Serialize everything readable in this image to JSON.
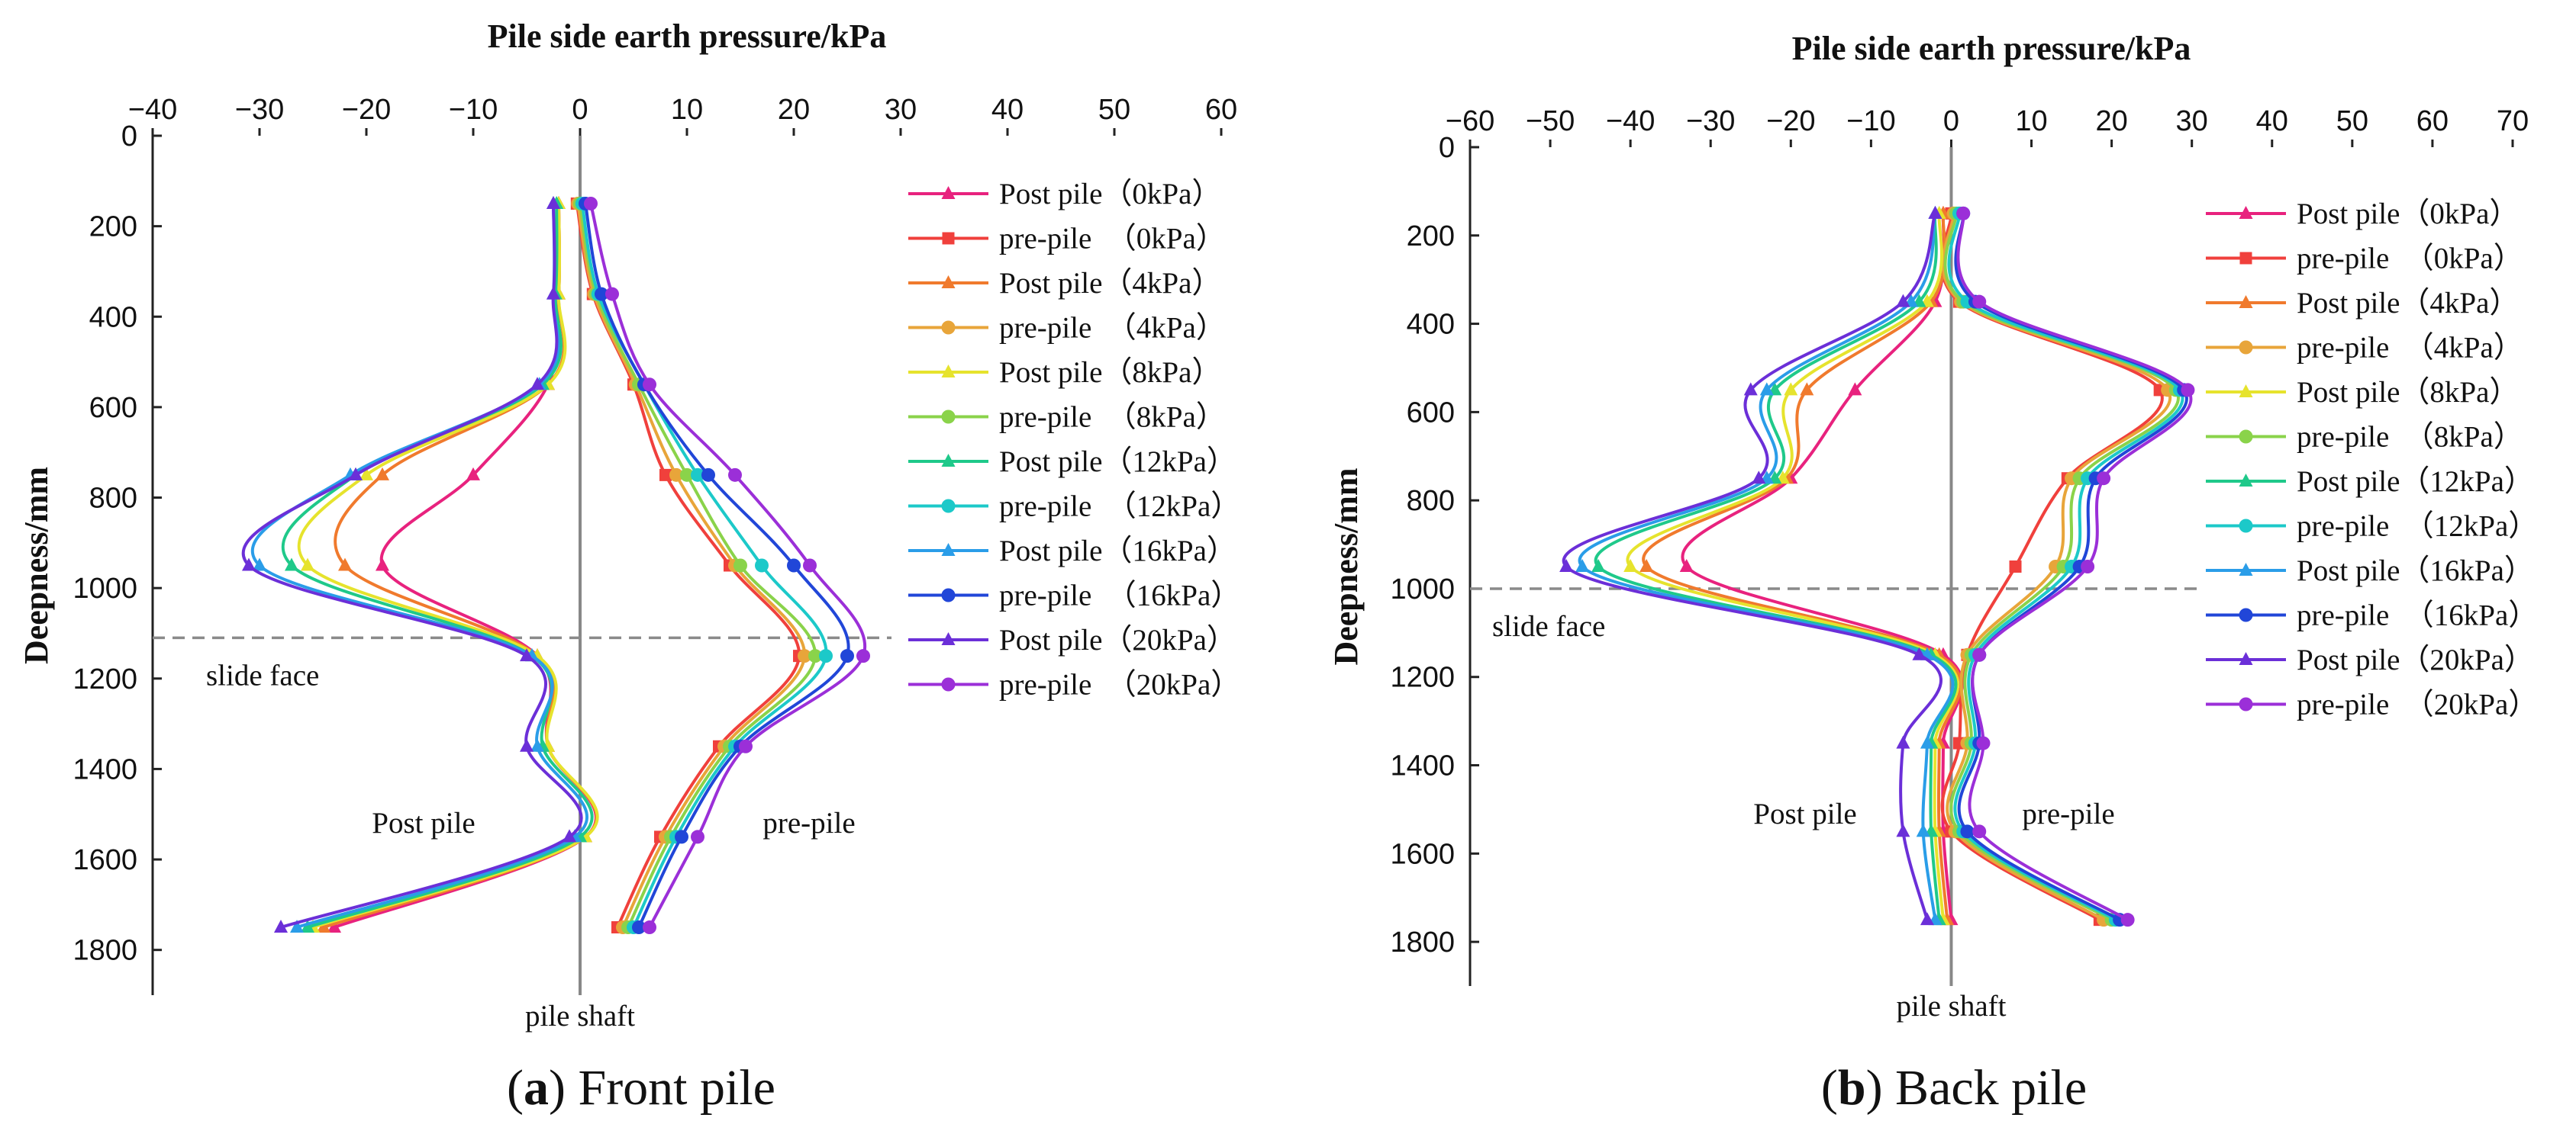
{
  "chart_data": [
    {
      "id": "front",
      "type": "line",
      "caption": {
        "open": "(",
        "letter": "a",
        "close": ")",
        "text": " Front pile"
      },
      "xlabel": "Pile side earth pressure/kPa",
      "ylabel": "Deepness/mm",
      "xlim": [
        -40,
        60
      ],
      "ylim": [
        0,
        1900
      ],
      "xticks": [
        -40,
        -30,
        -20,
        -10,
        0,
        10,
        20,
        30,
        40,
        50,
        60
      ],
      "yticks": [
        0,
        200,
        400,
        600,
        800,
        1000,
        1200,
        1400,
        1600,
        1800
      ],
      "slide_face_depth": 1110,
      "annotations": {
        "slide": "slide face",
        "post": "Post pile",
        "pre": "pre-pile",
        "shaft": "pile shaft"
      },
      "depths": [
        150,
        350,
        550,
        750,
        950,
        1150,
        1350,
        1550,
        1750
      ],
      "series": [
        {
          "name": "Post pile（0kPa）",
          "color": "#e8227e",
          "marker": "triangle",
          "values": [
            -2.0,
            -2.0,
            -3.0,
            -10.0,
            -18.5,
            -4.0,
            -3.0,
            0.5,
            -23.0
          ]
        },
        {
          "name": "pre-pile　（0kPa）",
          "color": "#f0403c",
          "marker": "square",
          "values": [
            -0.3,
            1.2,
            5.0,
            8.0,
            14.0,
            20.5,
            13.0,
            7.5,
            3.5
          ]
        },
        {
          "name": "Post pile（4kPa）",
          "color": "#f07a2d",
          "marker": "triangle",
          "values": [
            -2.0,
            -2.0,
            -3.0,
            -18.5,
            -22.0,
            -4.0,
            -3.0,
            0.5,
            -24.0
          ]
        },
        {
          "name": "pre-pile　（4kPa）",
          "color": "#e8a53a",
          "marker": "circle",
          "values": [
            -0.2,
            1.3,
            5.2,
            9.0,
            14.5,
            21.0,
            13.5,
            8.0,
            4.0
          ]
        },
        {
          "name": "Post pile（8kPa）",
          "color": "#e6e32d",
          "marker": "triangle",
          "values": [
            -2.0,
            -2.0,
            -3.0,
            -20.0,
            -25.5,
            -4.0,
            -3.0,
            0.5,
            -25.0
          ]
        },
        {
          "name": "pre-pile　（8kPa）",
          "color": "#8ad34a",
          "marker": "circle",
          "values": [
            0.0,
            1.5,
            5.5,
            10.0,
            15.0,
            22.0,
            14.0,
            8.5,
            4.5
          ]
        },
        {
          "name": "Post pile（12kPa）",
          "color": "#1fc98a",
          "marker": "triangle",
          "values": [
            -2.2,
            -2.3,
            -3.5,
            -21.0,
            -27.0,
            -4.5,
            -3.5,
            0.0,
            -25.5
          ]
        },
        {
          "name": "pre-pile　（12kPa）",
          "color": "#1cc9c9",
          "marker": "circle",
          "values": [
            0.2,
            1.7,
            6.0,
            11.0,
            17.0,
            23.0,
            14.5,
            9.0,
            5.0
          ]
        },
        {
          "name": "Post pile（16kPa）",
          "color": "#2a9de8",
          "marker": "triangle",
          "values": [
            -2.5,
            -2.5,
            -3.8,
            -21.5,
            -30.0,
            -4.5,
            -4.0,
            -0.5,
            -26.5
          ]
        },
        {
          "name": "pre-pile　（16kPa）",
          "color": "#2146d8",
          "marker": "circle",
          "values": [
            0.5,
            2.0,
            6.0,
            12.0,
            20.0,
            25.0,
            15.0,
            9.5,
            5.5
          ]
        },
        {
          "name": "Post pile（20kPa）",
          "color": "#6b2fd8",
          "marker": "triangle",
          "values": [
            -2.5,
            -2.5,
            -4.0,
            -21.0,
            -31.0,
            -5.0,
            -5.0,
            -1.0,
            -28.0
          ]
        },
        {
          "name": "pre-pile　（20kPa）",
          "color": "#9b2fd8",
          "marker": "circle",
          "values": [
            1.0,
            3.0,
            6.5,
            14.5,
            21.5,
            26.5,
            15.5,
            11.0,
            6.5
          ]
        }
      ]
    },
    {
      "id": "back",
      "type": "line",
      "caption": {
        "open": "(",
        "letter": "b",
        "close": ")",
        "text": " Back pile"
      },
      "xlabel": "Pile side earth pressure/kPa",
      "ylabel": "Deepness/mm",
      "xlim": [
        -60,
        70
      ],
      "ylim": [
        0,
        1900
      ],
      "xticks": [
        -60,
        -50,
        -40,
        -30,
        -20,
        -10,
        0,
        10,
        20,
        30,
        40,
        50,
        60,
        70
      ],
      "yticks": [
        0,
        200,
        400,
        600,
        800,
        1000,
        1200,
        1400,
        1600,
        1800
      ],
      "slide_face_depth": 1000,
      "annotations": {
        "slide": "slide face",
        "post": "Post pile",
        "pre": "pre-pile",
        "shaft": "pile shaft"
      },
      "depths": [
        150,
        350,
        550,
        750,
        950,
        1150,
        1350,
        1550,
        1750
      ],
      "series": [
        {
          "name": "Post pile（0kPa）",
          "color": "#e8227e",
          "marker": "triangle",
          "values": [
            -1.0,
            -2.0,
            -12.0,
            -20.0,
            -33.0,
            -1.0,
            -1.0,
            -1.0,
            0.0
          ]
        },
        {
          "name": "pre-pile　（0kPa）",
          "color": "#f0403c",
          "marker": "square",
          "values": [
            0.0,
            1.0,
            26.0,
            14.5,
            8.0,
            2.0,
            1.0,
            0.0,
            18.5
          ]
        },
        {
          "name": "Post pile（4kPa）",
          "color": "#f07a2d",
          "marker": "triangle",
          "values": [
            -1.0,
            -2.5,
            -18.0,
            -20.5,
            -38.0,
            -1.5,
            -1.5,
            -1.5,
            -0.5
          ]
        },
        {
          "name": "pre-pile　（4kPa）",
          "color": "#e8a53a",
          "marker": "circle",
          "values": [
            0.3,
            1.2,
            27.0,
            15.0,
            13.0,
            2.0,
            2.0,
            0.5,
            19.0
          ]
        },
        {
          "name": "Post pile（8kPa）",
          "color": "#e6e32d",
          "marker": "triangle",
          "values": [
            -1.5,
            -3.0,
            -20.0,
            -21.0,
            -40.0,
            -2.0,
            -2.0,
            -2.0,
            -1.0
          ]
        },
        {
          "name": "pre-pile　（8kPa）",
          "color": "#8ad34a",
          "marker": "circle",
          "values": [
            0.6,
            1.5,
            28.0,
            16.0,
            14.0,
            2.5,
            2.5,
            1.0,
            20.0
          ]
        },
        {
          "name": "Post pile（12kPa）",
          "color": "#1fc98a",
          "marker": "triangle",
          "values": [
            -2.0,
            -4.0,
            -22.0,
            -22.0,
            -44.0,
            -2.5,
            -2.5,
            -2.5,
            -1.5
          ]
        },
        {
          "name": "pre-pile　（12kPa）",
          "color": "#1cc9c9",
          "marker": "circle",
          "values": [
            1.0,
            2.0,
            28.5,
            17.0,
            15.0,
            3.0,
            3.0,
            1.5,
            20.5
          ]
        },
        {
          "name": "Post pile（16kPa）",
          "color": "#2a9de8",
          "marker": "triangle",
          "values": [
            -2.0,
            -5.0,
            -23.0,
            -23.0,
            -46.0,
            -3.0,
            -3.0,
            -3.5,
            -2.0
          ]
        },
        {
          "name": "pre-pile　（16kPa）",
          "color": "#2146d8",
          "marker": "circle",
          "values": [
            1.5,
            3.0,
            29.0,
            18.0,
            16.0,
            3.5,
            3.5,
            2.0,
            21.0
          ]
        },
        {
          "name": "Post pile（20kPa）",
          "color": "#6b2fd8",
          "marker": "triangle",
          "values": [
            -2.0,
            -6.0,
            -25.0,
            -24.0,
            -48.0,
            -4.0,
            -6.0,
            -6.0,
            -3.0
          ]
        },
        {
          "name": "pre-pile　（20kPa）",
          "color": "#9b2fd8",
          "marker": "circle",
          "values": [
            1.5,
            3.5,
            29.5,
            19.0,
            17.0,
            3.5,
            4.0,
            3.5,
            22.0
          ]
        }
      ]
    }
  ]
}
